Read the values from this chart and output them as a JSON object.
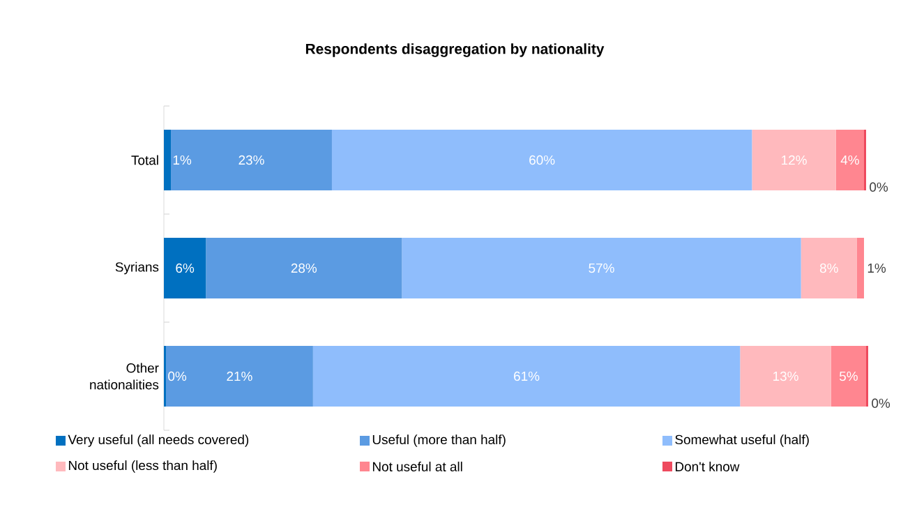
{
  "chart_data": {
    "type": "bar",
    "orientation": "horizontal",
    "stacked": true,
    "title": "Respondents disaggregation by nationality",
    "categories": [
      "Total",
      "Syrians",
      "Other nationalities"
    ],
    "legend": "bottom",
    "series": [
      {
        "name": "Very useful (all needs covered)",
        "color": "#0070c0",
        "values": [
          1,
          6,
          0.3
        ],
        "value_labels": [
          "1%",
          "6%",
          "0%"
        ]
      },
      {
        "name": "Useful (more than half)",
        "color": "#5b9be2",
        "values": [
          23,
          28,
          21
        ],
        "value_labels": [
          "23%",
          "28%",
          "21%"
        ]
      },
      {
        "name": "Somewhat useful (half)",
        "color": "#8fbdfc",
        "values": [
          60,
          57,
          61
        ],
        "value_labels": [
          "60%",
          "57%",
          "61%"
        ]
      },
      {
        "name": "Not useful (less than half)",
        "color": "#ffb9bd",
        "values": [
          12,
          8,
          13
        ],
        "value_labels": [
          "12%",
          "8%",
          "13%"
        ]
      },
      {
        "name": "Not useful at all",
        "color": "#ff8690",
        "values": [
          4,
          1,
          5
        ],
        "value_labels": [
          "4%",
          "1%",
          "5%"
        ]
      },
      {
        "name": "Don't know",
        "color": "#ee4a5e",
        "values": [
          0.3,
          0,
          0.3
        ],
        "value_labels": [
          "0%",
          null,
          "0%"
        ]
      }
    ]
  }
}
